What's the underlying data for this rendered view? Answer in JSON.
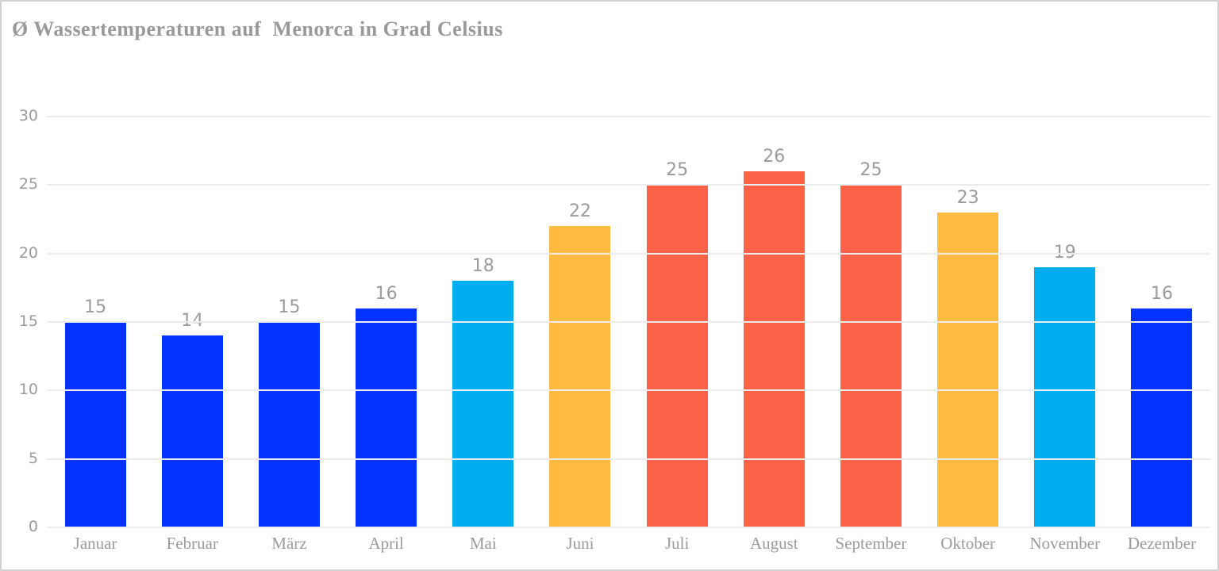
{
  "frame": {
    "background": "#ffffff",
    "border_color": "#d2d2d2"
  },
  "title": {
    "text": "Ø Wassertemperaturen auf  Menorca in Grad Celsius",
    "color": "#999999"
  },
  "chart_data": {
    "type": "bar",
    "title": "Ø Wassertemperaturen auf Menorca in Grad Celsius",
    "categories": [
      "Januar",
      "Februar",
      "März",
      "April",
      "Mai",
      "Juni",
      "Juli",
      "August",
      "September",
      "Oktober",
      "November",
      "Dezember"
    ],
    "values": [
      15,
      14,
      15,
      16,
      18,
      22,
      25,
      26,
      25,
      23,
      19,
      16
    ],
    "bar_colors": [
      "#0433ff",
      "#0433ff",
      "#0433ff",
      "#0433ff",
      "#00aeef",
      "#ffba42",
      "#fc6247",
      "#fc6247",
      "#fc6247",
      "#ffba42",
      "#00aeef",
      "#0433ff"
    ],
    "value_labels": [
      "15",
      "14",
      "15",
      "16",
      "18",
      "22",
      "25",
      "26",
      "25",
      "23",
      "19",
      "16"
    ],
    "xlabel": "",
    "ylabel": "",
    "unit": "Grad Celsius",
    "ylim": [
      0,
      30
    ],
    "yticks": [
      30,
      25,
      20,
      15,
      10,
      5,
      0
    ],
    "grid": true,
    "legend": false,
    "axis_text_color": "#9b9b9b",
    "gridline_color": "#ececec",
    "palette": {
      "cold_blue": "#0433ff",
      "mild_cyan": "#00aeef",
      "warm_orange": "#ffba42",
      "hot_red": "#fc6247"
    }
  }
}
